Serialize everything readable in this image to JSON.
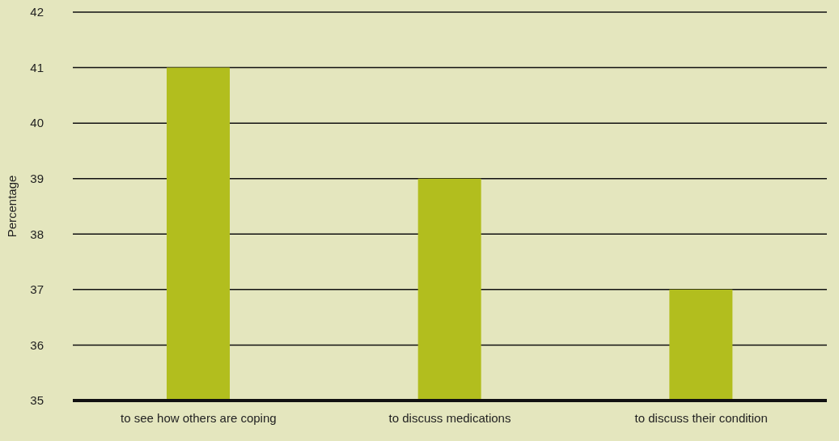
{
  "chart_data": {
    "type": "bar",
    "ylabel": "Percentage",
    "categories": [
      "to see how others are coping",
      "to discuss medications",
      "to discuss their condition"
    ],
    "values": [
      41,
      39,
      37
    ],
    "color": "#b2be1e",
    "ylim": [
      35,
      42
    ],
    "yticks": [
      35,
      36,
      37,
      38,
      39,
      40,
      41,
      42
    ],
    "grid": "y"
  }
}
